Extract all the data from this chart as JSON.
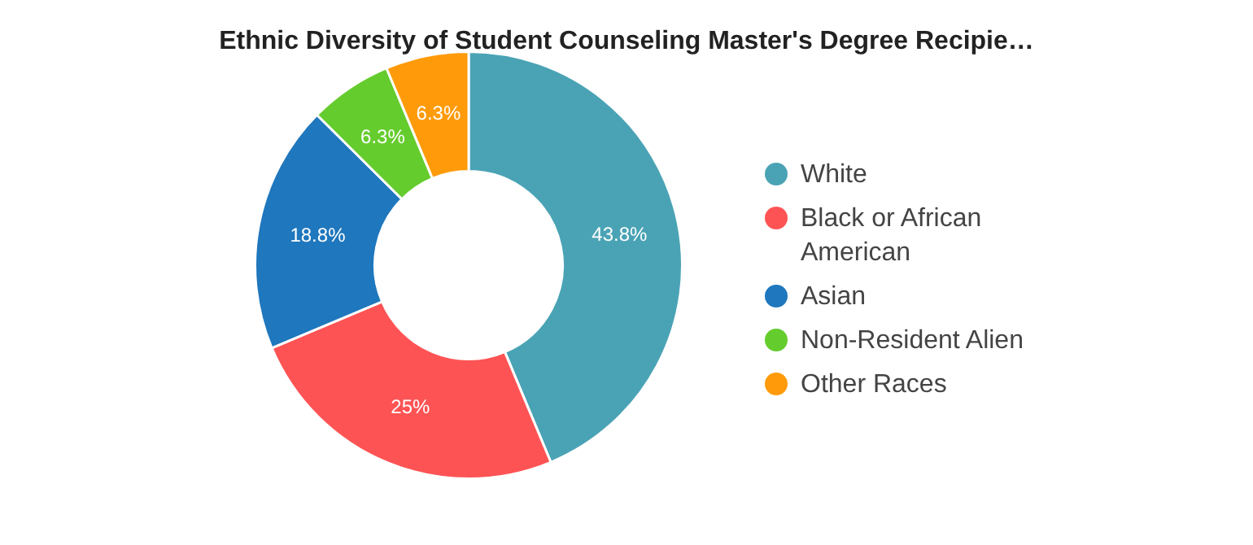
{
  "chart_data": {
    "type": "donut",
    "title": "Ethnic Diversity of Student Counseling Master's Degree Recipie…",
    "categories": [
      "White",
      "Black or African American",
      "Asian",
      "Non-Resident Alien",
      "Other Races"
    ],
    "values": [
      43.8,
      25,
      18.8,
      6.3,
      6.3
    ],
    "colors": [
      "#4aa3b5",
      "#fe5354",
      "#1f77bd",
      "#65cc2e",
      "#ff9b0a"
    ],
    "value_labels": [
      "43.8%",
      "25%",
      "18.8%",
      "6.3%",
      "6.3%"
    ],
    "legend": "right"
  }
}
